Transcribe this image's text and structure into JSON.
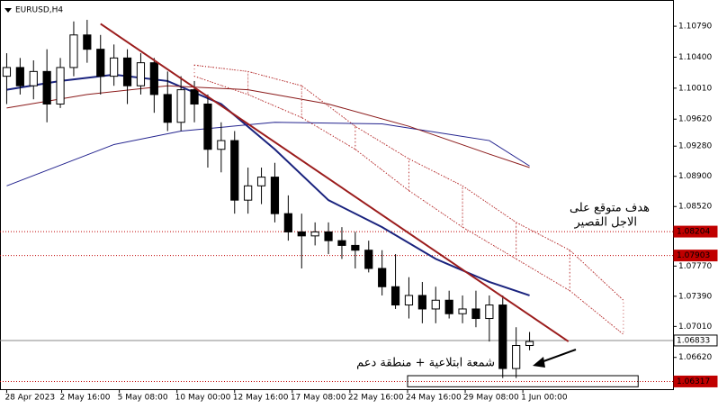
{
  "chart_data": {
    "type": "candlestick",
    "title": "EURUSD,H4",
    "xlim": [
      -0.5,
      49.7
    ],
    "ylim": [
      1.0622,
      1.1112
    ],
    "xticks": [
      {
        "value": 0,
        "label": "28 Apr 2023"
      },
      {
        "value": 4.1,
        "label": "2 May 16:00"
      },
      {
        "value": 8.4,
        "label": "5 May 08:00"
      },
      {
        "value": 12.7,
        "label": "10 May 00:00"
      },
      {
        "value": 17,
        "label": "12 May 16:00"
      },
      {
        "value": 21.3,
        "label": "17 May 08:00"
      },
      {
        "value": 25.6,
        "label": "22 May 16:00"
      },
      {
        "value": 29.9,
        "label": "24 May 16:00"
      },
      {
        "value": 34.2,
        "label": "29 May 08:00"
      },
      {
        "value": 38.5,
        "label": "1 Jun 00:00"
      }
    ],
    "yticks": [
      {
        "value": 1.1079,
        "label": "1.10790"
      },
      {
        "value": 1.104,
        "label": "1.10400"
      },
      {
        "value": 1.1001,
        "label": "1.10010"
      },
      {
        "value": 1.0962,
        "label": "1.09620"
      },
      {
        "value": 1.0928,
        "label": "1.09280"
      },
      {
        "value": 1.089,
        "label": "1.08900"
      },
      {
        "value": 1.0852,
        "label": "1.08520"
      },
      {
        "value": 1.0777,
        "label": "1.07770"
      },
      {
        "value": 1.0739,
        "label": "1.07390"
      },
      {
        "value": 1.0701,
        "label": "1.07010"
      },
      {
        "value": 1.0662,
        "label": "1.06620"
      }
    ],
    "candles": {
      "up_color": "#ffffff",
      "down_color": "#000000",
      "open": [
        1.1016,
        1.1027,
        1.1004,
        1.1022,
        1.0981,
        1.1027,
        1.1068,
        1.105,
        1.1016,
        1.1039,
        1.1004,
        1.1033,
        1.0993,
        1.0958,
        1.0999,
        1.0981,
        1.0924,
        1.0935,
        1.086,
        1.0878,
        1.0889,
        1.0843,
        1.082,
        1.0815,
        1.082,
        1.0809,
        1.0803,
        1.0797,
        1.0774,
        1.0751,
        1.0728,
        1.074,
        1.0723,
        1.0734,
        1.0717,
        1.0723,
        1.0711,
        1.0728,
        1.0648,
        1.0677
      ],
      "high": [
        1.1045,
        1.1039,
        1.1036,
        1.105,
        1.1039,
        1.1085,
        1.1087,
        1.1068,
        1.1056,
        1.105,
        1.1045,
        1.1039,
        1.1022,
        1.1016,
        1.101,
        1.0993,
        1.0958,
        1.0947,
        1.0901,
        1.0901,
        1.0907,
        1.0866,
        1.0843,
        1.0832,
        1.0832,
        1.0826,
        1.082,
        1.0809,
        1.0797,
        1.0792,
        1.0763,
        1.0757,
        1.0751,
        1.0746,
        1.074,
        1.0746,
        1.074,
        1.074,
        1.07,
        1.0694
      ],
      "low": [
        1.0981,
        1.0993,
        1.0987,
        1.0958,
        1.0976,
        1.1016,
        1.1033,
        1.0993,
        1.1004,
        1.0981,
        1.0993,
        1.097,
        1.0947,
        1.0947,
        1.0958,
        1.0901,
        1.0895,
        1.0843,
        1.0843,
        1.0855,
        1.0832,
        1.0809,
        1.0774,
        1.0803,
        1.0792,
        1.0786,
        1.0774,
        1.0769,
        1.074,
        1.0723,
        1.0711,
        1.0705,
        1.0705,
        1.0711,
        1.0705,
        1.07,
        1.0682,
        1.0636,
        1.0636,
        1.0671
      ],
      "close": [
        1.1027,
        1.1004,
        1.1022,
        1.0981,
        1.1027,
        1.1068,
        1.105,
        1.1016,
        1.1039,
        1.1004,
        1.1033,
        1.0993,
        1.0958,
        1.0999,
        1.0981,
        1.0924,
        1.0935,
        1.086,
        1.0878,
        1.0889,
        1.0843,
        1.082,
        1.0815,
        1.082,
        1.0809,
        1.0803,
        1.0797,
        1.0774,
        1.0751,
        1.0728,
        1.074,
        1.0723,
        1.0734,
        1.0717,
        1.0723,
        1.0711,
        1.0728,
        1.0648,
        1.0677,
        1.0682
      ]
    },
    "series": [
      {
        "color": "#1a237e",
        "width": 2,
        "x": [
          0,
          4,
          8,
          12,
          16,
          20,
          24,
          28,
          32,
          36,
          39
        ],
        "values": [
          1.0999,
          1.101,
          1.1018,
          1.101,
          1.0981,
          1.0924,
          1.086,
          1.0826,
          1.0786,
          1.0757,
          1.074
        ]
      },
      {
        "color": "#23238e",
        "width": 1,
        "x": [
          0,
          8,
          13,
          20,
          28,
          36,
          39
        ],
        "values": [
          1.0878,
          1.093,
          1.0947,
          1.0958,
          1.0956,
          1.0935,
          1.0903
        ]
      },
      {
        "color": "#8b1a1a",
        "width": 1,
        "x": [
          0,
          6,
          12,
          18,
          24,
          30,
          36,
          39
        ],
        "values": [
          1.0976,
          1.0993,
          1.1004,
          1.0999,
          1.0981,
          1.0953,
          1.0918,
          1.0901
        ]
      }
    ],
    "cloud": {
      "color": "#b22222",
      "x": [
        14,
        18,
        22,
        26,
        30,
        34,
        38,
        42,
        46
      ],
      "upper": [
        1.103,
        1.1022,
        1.1004,
        1.0953,
        1.0912,
        1.0878,
        1.0832,
        1.0797,
        1.0734
      ],
      "lower": [
        1.1016,
        1.0993,
        1.0964,
        1.0924,
        1.0872,
        1.0826,
        1.0786,
        1.0746,
        1.0691
      ]
    },
    "trendline": {
      "color": "#9b1c1c",
      "x": [
        7,
        41.9
      ],
      "values": [
        1.1082,
        1.0682
      ]
    },
    "levels": [
      {
        "value": 1.08204,
        "color": "#c00000"
      },
      {
        "value": 1.07903,
        "color": "#c00000"
      },
      {
        "value": 1.06833,
        "color": "#888888"
      },
      {
        "value": 1.06317,
        "color": "#c00000"
      }
    ],
    "zone": {
      "x": [
        29.9,
        47.1
      ],
      "values": [
        1.0639,
        1.0625
      ]
    },
    "annotations": [
      "هدف متوقع على",
      "الاجل القصير",
      "شمعة ابتلاعية + منطقة دعم"
    ]
  }
}
